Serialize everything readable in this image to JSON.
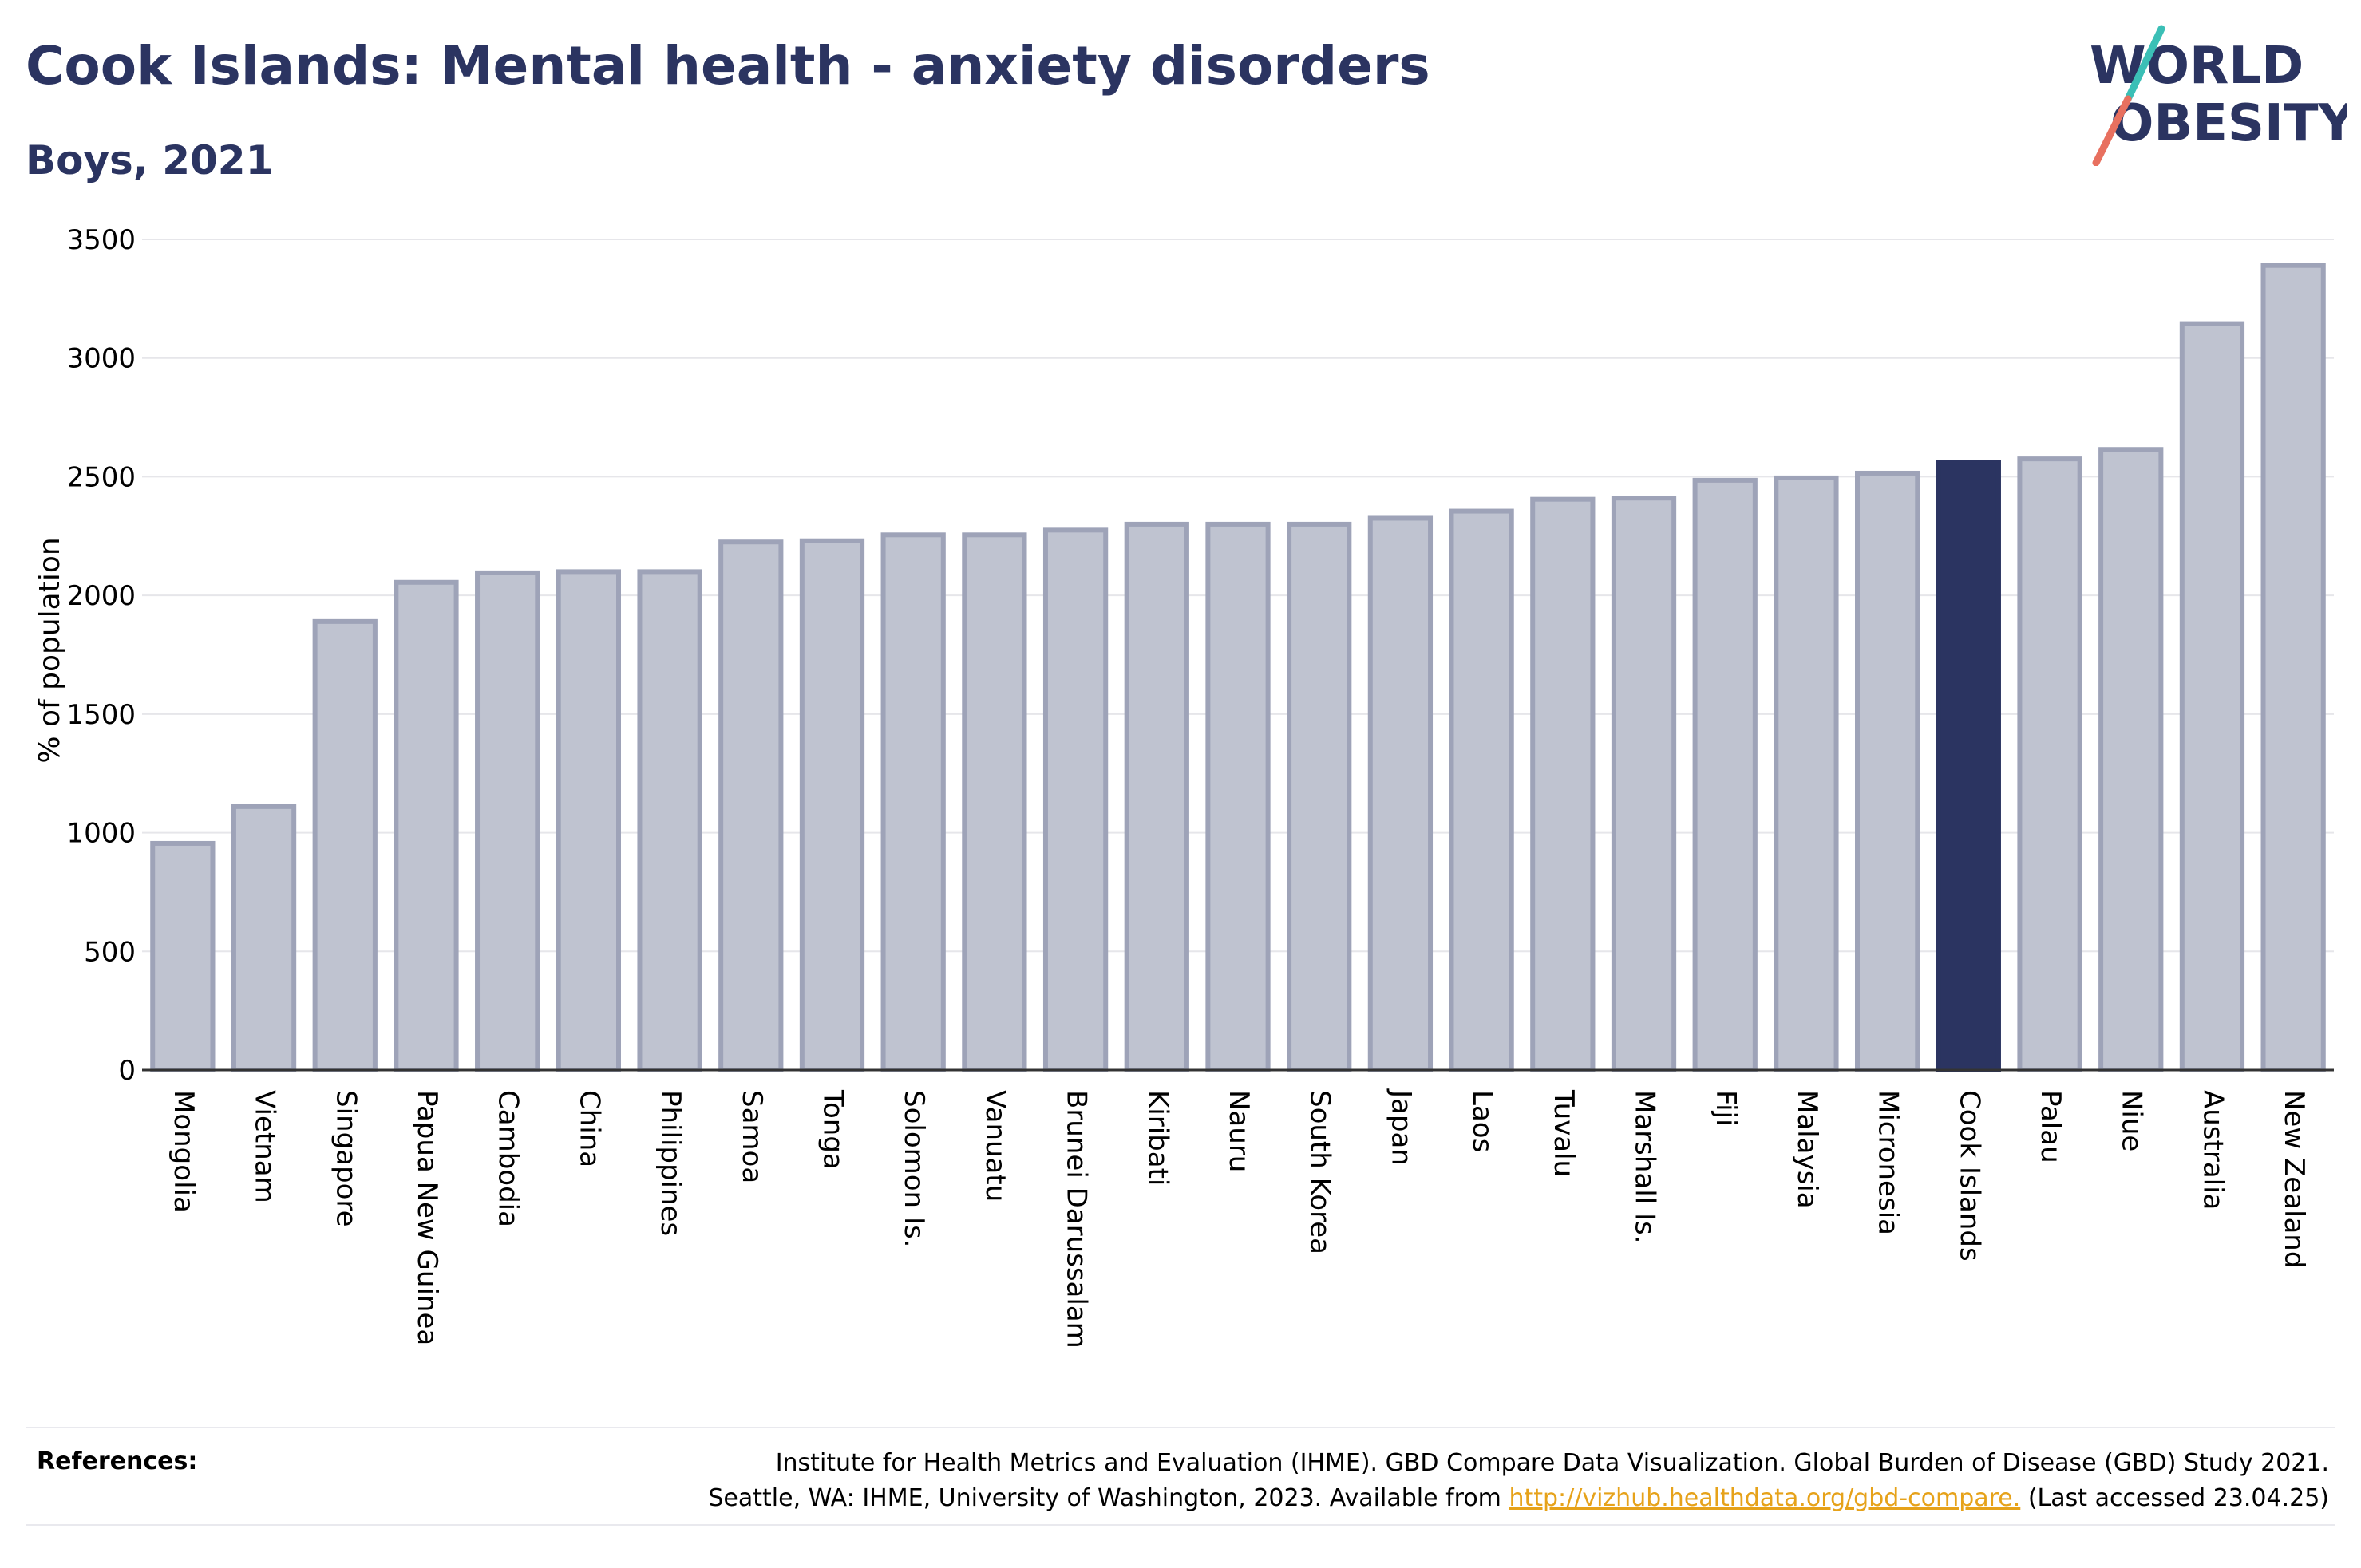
{
  "header": {
    "title": "Cook Islands: Mental health - anxiety disorders",
    "subtitle": "Boys, 2021"
  },
  "logo": {
    "line1": "WORLD",
    "line2": "OBESITY",
    "colors": {
      "text": "#2b3461",
      "slash_teal": "#3bbfb6",
      "slash_coral": "#e8705f"
    }
  },
  "colors": {
    "bar_default": "#bfc3d0",
    "bar_default_stroke": "#9ea3b8",
    "bar_highlight": "#2b3461",
    "grid": "#e6e6ea",
    "axis": "#333333"
  },
  "chart_data": {
    "type": "bar",
    "title": "Cook Islands: Mental health - anxiety disorders",
    "subtitle": "Boys, 2021",
    "xlabel": "",
    "ylabel": "% of population",
    "ylim": [
      0,
      3500
    ],
    "yticks": [
      0,
      500,
      1000,
      1500,
      2000,
      2500,
      3000,
      3500
    ],
    "grid": true,
    "highlight": "Cook Islands",
    "categories": [
      "Mongolia",
      "Vietnam",
      "Singapore",
      "Papua New Guinea",
      "Cambodia",
      "China",
      "Philippines",
      "Samoa",
      "Tonga",
      "Solomon Is.",
      "Vanuatu",
      "Brunei Darussalam",
      "Kiribati",
      "Nauru",
      "South Korea",
      "Japan",
      "Laos",
      "Tuvalu",
      "Marshall Is.",
      "Fiji",
      "Malaysia",
      "Micronesia",
      "Cook Islands",
      "Palau",
      "Niue",
      "Australia",
      "New Zealand"
    ],
    "values": [
      955,
      1110,
      1890,
      2055,
      2095,
      2100,
      2100,
      2225,
      2230,
      2255,
      2255,
      2275,
      2300,
      2300,
      2300,
      2325,
      2355,
      2405,
      2410,
      2485,
      2495,
      2515,
      2560,
      2575,
      2615,
      3145,
      3390
    ]
  },
  "references": {
    "label": "References:",
    "line1": "Institute for Health Metrics and Evaluation (IHME). GBD Compare Data Visualization. Global Burden of Disease (GBD) Study 2021.",
    "line2_pre": "Seattle, WA: IHME, University of Washington, 2023. Available from ",
    "link": "http://vizhub.healthdata.org/gbd-compare.",
    "line2_post": " (Last accessed 23.04.25)"
  }
}
